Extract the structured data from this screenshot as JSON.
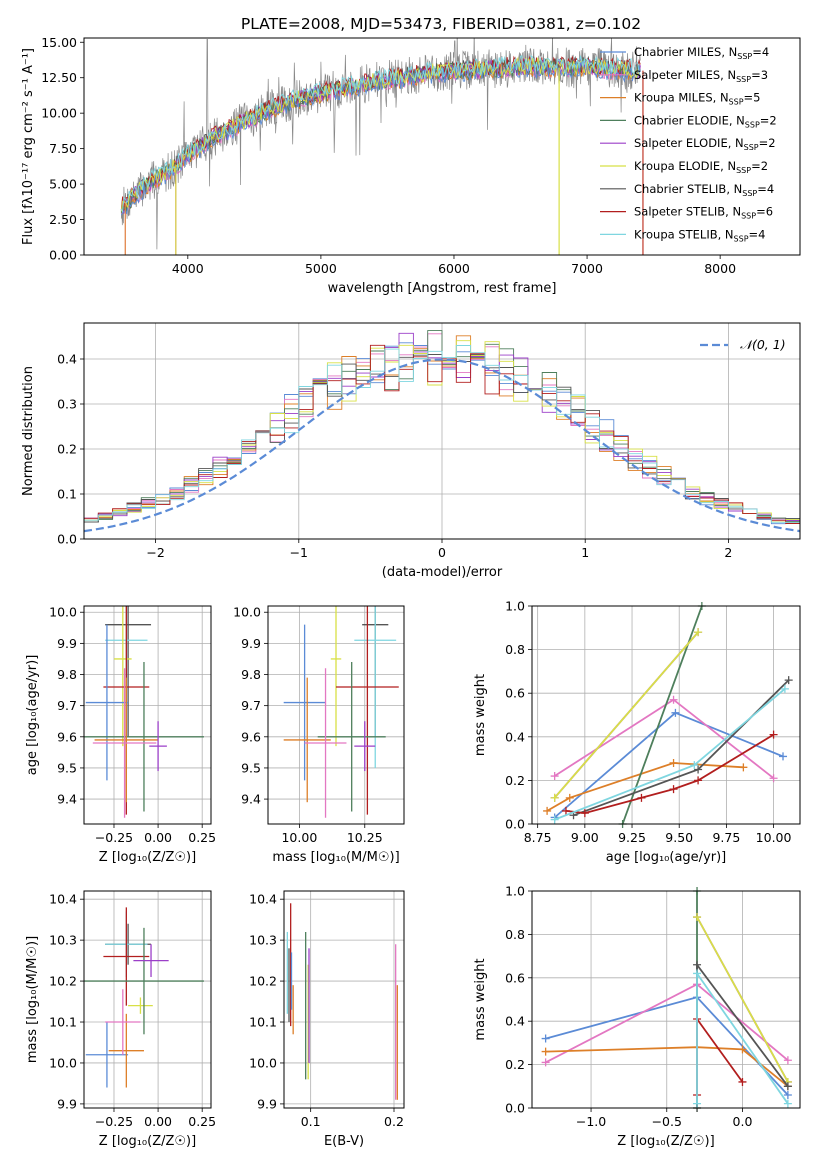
{
  "figure": {
    "title": "PLATE=2008, MJD=53473, FIBERID=0381, z=0.102"
  },
  "chart_data": [
    {
      "type": "line",
      "panel": "spectrum",
      "xlabel": "wavelength [Angstrom, rest frame]",
      "ylabel": "Flux [fλ10⁻¹⁷ erg cm⁻² s⁻¹ A⁻¹]",
      "xlim": [
        3220,
        8600
      ],
      "ylim": [
        0,
        15.3
      ],
      "xticks": [
        4000,
        5000,
        6000,
        7000,
        8000
      ],
      "yticks": [
        0.0,
        2.5,
        5.0,
        7.5,
        10.0,
        12.5,
        15.0
      ],
      "grid": false,
      "legend_position": "top-right",
      "continuum": {
        "x": [
          3500,
          3600,
          3700,
          3800,
          3900,
          4000,
          4100,
          4200,
          4300,
          4400,
          4600,
          4800,
          5000,
          5200,
          5400,
          5600,
          5800,
          6000,
          6200,
          6400,
          6600,
          6800,
          7000,
          7200,
          7400
        ],
        "y": [
          3.3,
          4.2,
          5.0,
          5.6,
          6.2,
          7.1,
          7.7,
          8.3,
          8.8,
          9.3,
          10.2,
          10.9,
          11.4,
          11.8,
          12.2,
          12.5,
          12.8,
          13.0,
          13.1,
          13.2,
          13.3,
          13.2,
          13.3,
          13.1,
          13.0
        ]
      },
      "series": [
        {
          "name": "Chabrier MILES, N_SSP=4",
          "color": "#5b8bd6"
        },
        {
          "name": "Salpeter MILES, N_SSP=3",
          "color": "#e377c2"
        },
        {
          "name": "Kroupa MILES, N_SSP=5",
          "color": "#dd7f28"
        },
        {
          "name": "Chabrier ELODIE, N_SSP=2",
          "color": "#4e7f5c"
        },
        {
          "name": "Salpeter ELODIE, N_SSP=2",
          "color": "#9b3fc8"
        },
        {
          "name": "Kroupa ELODIE, N_SSP=2",
          "color": "#d8e046"
        },
        {
          "name": "Chabrier STELIB, N_SSP=4",
          "color": "#555555"
        },
        {
          "name": "Salpeter STELIB, N_SSP=6",
          "color": "#b21e1e"
        },
        {
          "name": "Kroupa STELIB, N_SSP=4",
          "color": "#7fd6e0"
        }
      ]
    },
    {
      "type": "line",
      "panel": "residuals",
      "xlabel": "(data-model)/error",
      "ylabel": "Normed distribution",
      "xlim": [
        -2.5,
        2.5
      ],
      "ylim": [
        0,
        0.48
      ],
      "xticks": [
        -2,
        -1,
        0,
        1,
        2
      ],
      "yticks": [
        0.0,
        0.1,
        0.2,
        0.3,
        0.4
      ],
      "grid": true,
      "legend_position": "top-right",
      "gaussian_label": "𝒩(0, 1)",
      "gaussian_color": "#5b8bd6",
      "bin_width": 0.1,
      "histogram_mean": [
        0.02,
        0.02,
        0.03,
        0.04,
        0.04,
        0.05,
        0.06,
        0.07,
        0.08,
        0.09,
        0.1,
        0.12,
        0.14,
        0.16,
        0.18,
        0.2,
        0.23,
        0.25,
        0.28,
        0.3,
        0.32,
        0.34,
        0.36,
        0.37,
        0.38,
        0.39,
        0.4,
        0.4,
        0.4,
        0.4,
        0.4,
        0.39,
        0.38,
        0.37,
        0.36,
        0.34,
        0.32,
        0.3,
        0.28,
        0.25,
        0.23,
        0.2,
        0.18,
        0.16,
        0.14,
        0.12,
        0.1,
        0.09,
        0.08,
        0.07,
        0.06,
        0.05,
        0.04,
        0.04,
        0.03,
        0.03,
        0.02,
        0.02
      ]
    },
    {
      "type": "scatter",
      "panel": "Z-age",
      "xlabel": "Z [log₁₀(Z/Z☉)]",
      "ylabel": "age  [log₁₀(age/yr)]",
      "xlim": [
        -0.42,
        0.3
      ],
      "ylim": [
        9.32,
        10.02
      ],
      "xticks": [
        -0.25,
        0.0,
        0.25
      ],
      "yticks": [
        9.4,
        9.5,
        9.6,
        9.7,
        9.8,
        9.9,
        10.0
      ],
      "grid": true,
      "points": [
        {
          "color": "#555555",
          "x": -0.17,
          "y": 9.96,
          "xerr": 0.13,
          "yerr": 0.36
        },
        {
          "color": "#7fd6e0",
          "x": -0.18,
          "y": 9.91,
          "xerr": 0.12,
          "yerr": 0.41
        },
        {
          "color": "#d8e046",
          "x": -0.2,
          "y": 9.85,
          "xerr": 0.05,
          "yerr": 0.28
        },
        {
          "color": "#b21e1e",
          "x": -0.18,
          "y": 9.76,
          "xerr": 0.13,
          "yerr": 0.41
        },
        {
          "color": "#5b8bd6",
          "x": -0.29,
          "y": 9.71,
          "xerr": 0.12,
          "yerr": 0.25
        },
        {
          "color": "#4e7f5c",
          "x": -0.08,
          "y": 9.6,
          "xerr": 0.34,
          "yerr": 0.24
        },
        {
          "color": "#dd7f28",
          "x": -0.18,
          "y": 9.59,
          "xerr": 0.18,
          "yerr": 0.2
        },
        {
          "color": "#e377c2",
          "x": -0.19,
          "y": 9.58,
          "xerr": 0.18,
          "yerr": 0.24
        },
        {
          "color": "#9b3fc8",
          "x": 0.0,
          "y": 9.57,
          "xerr": 0.05,
          "yerr": 0.08
        }
      ]
    },
    {
      "type": "scatter",
      "panel": "mass-age",
      "xlabel": "mass [log₁₀(M/M☉)]",
      "ylabel": "",
      "xlim": [
        9.88,
        10.4
      ],
      "ylim": [
        9.32,
        10.02
      ],
      "xticks": [
        10.0,
        10.25
      ],
      "yticks": [
        9.4,
        9.5,
        9.6,
        9.7,
        9.8,
        9.9,
        10.0
      ],
      "grid": true,
      "points": [
        {
          "color": "#555555",
          "x": 10.29,
          "y": 9.96,
          "xerr": 0.05,
          "yerr": 0.36
        },
        {
          "color": "#7fd6e0",
          "x": 10.29,
          "y": 9.91,
          "xerr": 0.08,
          "yerr": 0.41
        },
        {
          "color": "#d8e046",
          "x": 10.14,
          "y": 9.85,
          "xerr": 0.02,
          "yerr": 0.28
        },
        {
          "color": "#b21e1e",
          "x": 10.26,
          "y": 9.76,
          "xerr": 0.12,
          "yerr": 0.41
        },
        {
          "color": "#5b8bd6",
          "x": 10.02,
          "y": 9.71,
          "xerr": 0.08,
          "yerr": 0.25
        },
        {
          "color": "#4e7f5c",
          "x": 10.2,
          "y": 9.6,
          "xerr": 0.13,
          "yerr": 0.24
        },
        {
          "color": "#dd7f28",
          "x": 10.03,
          "y": 9.59,
          "xerr": 0.09,
          "yerr": 0.2
        },
        {
          "color": "#e377c2",
          "x": 10.1,
          "y": 9.58,
          "xerr": 0.08,
          "yerr": 0.24
        },
        {
          "color": "#9b3fc8",
          "x": 10.25,
          "y": 9.57,
          "xerr": 0.04,
          "yerr": 0.08
        }
      ]
    },
    {
      "type": "line",
      "panel": "age-weight",
      "xlabel": "age  [log₁₀(age/yr)]",
      "ylabel": "mass weight",
      "xlim": [
        8.72,
        10.14
      ],
      "ylim": [
        0,
        1.0
      ],
      "xticks": [
        8.75,
        9.0,
        9.25,
        9.5,
        9.75,
        10.0
      ],
      "yticks": [
        0.0,
        0.2,
        0.4,
        0.6,
        0.8,
        1.0
      ],
      "grid": true,
      "series": [
        {
          "color": "#5b8bd6",
          "x": [
            8.84,
            9.48,
            10.05
          ],
          "y": [
            0.03,
            0.51,
            0.31
          ]
        },
        {
          "color": "#e377c2",
          "x": [
            8.84,
            9.47,
            10.0
          ],
          "y": [
            0.22,
            0.57,
            0.21
          ]
        },
        {
          "color": "#dd7f28",
          "x": [
            8.8,
            8.92,
            9.47,
            9.84
          ],
          "y": [
            0.06,
            0.12,
            0.28,
            0.26
          ]
        },
        {
          "color": "#4e7f5c",
          "x": [
            9.2,
            9.62
          ],
          "y": [
            0.0,
            1.0
          ]
        },
        {
          "color": "#9b3fc8",
          "x": [
            8.84,
            9.6
          ],
          "y": [
            0.12,
            0.88
          ]
        },
        {
          "color": "#d8e046",
          "x": [
            8.84,
            9.6
          ],
          "y": [
            0.12,
            0.88
          ]
        },
        {
          "color": "#555555",
          "x": [
            8.94,
            9.6,
            10.08
          ],
          "y": [
            0.04,
            0.25,
            0.66
          ]
        },
        {
          "color": "#b21e1e",
          "x": [
            8.9,
            9.0,
            9.3,
            9.47,
            9.6,
            10.0
          ],
          "y": [
            0.06,
            0.05,
            0.12,
            0.16,
            0.2,
            0.41
          ]
        },
        {
          "color": "#7fd6e0",
          "x": [
            8.84,
            9.58,
            10.06
          ],
          "y": [
            0.02,
            0.27,
            0.62
          ]
        }
      ]
    },
    {
      "type": "scatter",
      "panel": "Z-mass",
      "xlabel": "Z [log₁₀(Z/Z☉)]",
      "ylabel": "mass [log₁₀(M/M☉)]",
      "xlim": [
        -0.42,
        0.3
      ],
      "ylim": [
        9.89,
        10.42
      ],
      "xticks": [
        -0.25,
        0.0,
        0.25
      ],
      "yticks": [
        9.9,
        10.0,
        10.1,
        10.2,
        10.3,
        10.4
      ],
      "grid": true,
      "points": [
        {
          "color": "#555555",
          "x": -0.17,
          "y": 10.29,
          "xerr": 0.13,
          "yerr": 0.05
        },
        {
          "color": "#7fd6e0",
          "x": -0.18,
          "y": 10.29,
          "xerr": 0.12,
          "yerr": 0.08
        },
        {
          "color": "#d8e046",
          "x": -0.1,
          "y": 10.14,
          "xerr": 0.07,
          "yerr": 0.02
        },
        {
          "color": "#b21e1e",
          "x": -0.18,
          "y": 10.26,
          "xerr": 0.13,
          "yerr": 0.12
        },
        {
          "color": "#5b8bd6",
          "x": -0.29,
          "y": 10.02,
          "xerr": 0.12,
          "yerr": 0.08
        },
        {
          "color": "#4e7f5c",
          "x": -0.08,
          "y": 10.2,
          "xerr": 0.34,
          "yerr": 0.13
        },
        {
          "color": "#dd7f28",
          "x": -0.18,
          "y": 10.03,
          "xerr": 0.1,
          "yerr": 0.09
        },
        {
          "color": "#e377c2",
          "x": -0.2,
          "y": 10.1,
          "xerr": 0.1,
          "yerr": 0.08
        },
        {
          "color": "#9b3fc8",
          "x": -0.04,
          "y": 10.25,
          "xerr": 0.1,
          "yerr": 0.04
        }
      ]
    },
    {
      "type": "scatter",
      "panel": "EBV-mass",
      "xlabel": "E(B-V)",
      "ylabel": "",
      "xlim": [
        0.068,
        0.212
      ],
      "ylim": [
        9.89,
        10.42
      ],
      "xticks": [
        0.1,
        0.2
      ],
      "yticks": [
        9.9,
        10.0,
        10.1,
        10.2,
        10.3,
        10.4
      ],
      "grid": true,
      "points": [
        {
          "color": "#7fd6e0",
          "x": 0.072,
          "y": 10.22,
          "yerr": 0.1
        },
        {
          "color": "#555555",
          "x": 0.074,
          "y": 10.19,
          "yerr": 0.09
        },
        {
          "color": "#b21e1e",
          "x": 0.076,
          "y": 10.24,
          "yerr": 0.15
        },
        {
          "color": "#5b8bd6",
          "x": 0.077,
          "y": 10.2,
          "yerr": 0.07
        },
        {
          "color": "#dd7f28",
          "x": 0.079,
          "y": 10.13,
          "yerr": 0.06
        },
        {
          "color": "#4e7f5c",
          "x": 0.094,
          "y": 10.14,
          "yerr": 0.18
        },
        {
          "color": "#d8e046",
          "x": 0.097,
          "y": 10.1,
          "yerr": 0.14
        },
        {
          "color": "#9b3fc8",
          "x": 0.098,
          "y": 10.14,
          "yerr": 0.14
        },
        {
          "color": "#e377c2",
          "x": 0.202,
          "y": 10.1,
          "yerr": 0.19
        },
        {
          "color": "#dd7f28",
          "x": 0.204,
          "y": 10.05,
          "yerr": 0.14
        }
      ]
    },
    {
      "type": "line",
      "panel": "Z-weight",
      "xlabel": "Z [log₁₀(Z/Z☉)]",
      "ylabel": "mass weight",
      "xlim": [
        -1.39,
        0.38
      ],
      "ylim": [
        0,
        1.0
      ],
      "xticks": [
        -1.0,
        -0.5,
        0.0
      ],
      "yticks": [
        0.0,
        0.2,
        0.4,
        0.6,
        0.8,
        1.0
      ],
      "grid": true,
      "series": [
        {
          "color": "#5b8bd6",
          "x": [
            -1.3,
            -0.3,
            0.3
          ],
          "y": [
            0.32,
            0.51,
            0.06
          ]
        },
        {
          "color": "#e377c2",
          "x": [
            -1.3,
            -0.3,
            0.3
          ],
          "y": [
            0.21,
            0.57,
            0.22
          ]
        },
        {
          "color": "#dd7f28",
          "x": [
            -1.3,
            -0.3,
            0.0,
            0.3
          ],
          "y": [
            0.26,
            0.28,
            0.27,
            0.1
          ]
        },
        {
          "color": "#4e7f5c",
          "x": [
            -0.3,
            -0.3
          ],
          "y": [
            0.0,
            1.0
          ]
        },
        {
          "color": "#9b3fc8",
          "x": [
            -0.3,
            0.3
          ],
          "y": [
            0.88,
            0.12
          ]
        },
        {
          "color": "#d8e046",
          "x": [
            -0.3,
            0.3
          ],
          "y": [
            0.88,
            0.12
          ]
        },
        {
          "color": "#555555",
          "x": [
            -0.3,
            -0.3,
            0.3
          ],
          "y": [
            0.0,
            0.66,
            0.1
          ]
        },
        {
          "color": "#b21e1e",
          "x": [
            -0.3,
            -0.3,
            0.0
          ],
          "y": [
            0.06,
            0.41,
            0.12
          ]
        },
        {
          "color": "#7fd6e0",
          "x": [
            -0.3,
            -0.3,
            0.3
          ],
          "y": [
            0.02,
            0.62,
            0.02
          ]
        }
      ]
    }
  ]
}
